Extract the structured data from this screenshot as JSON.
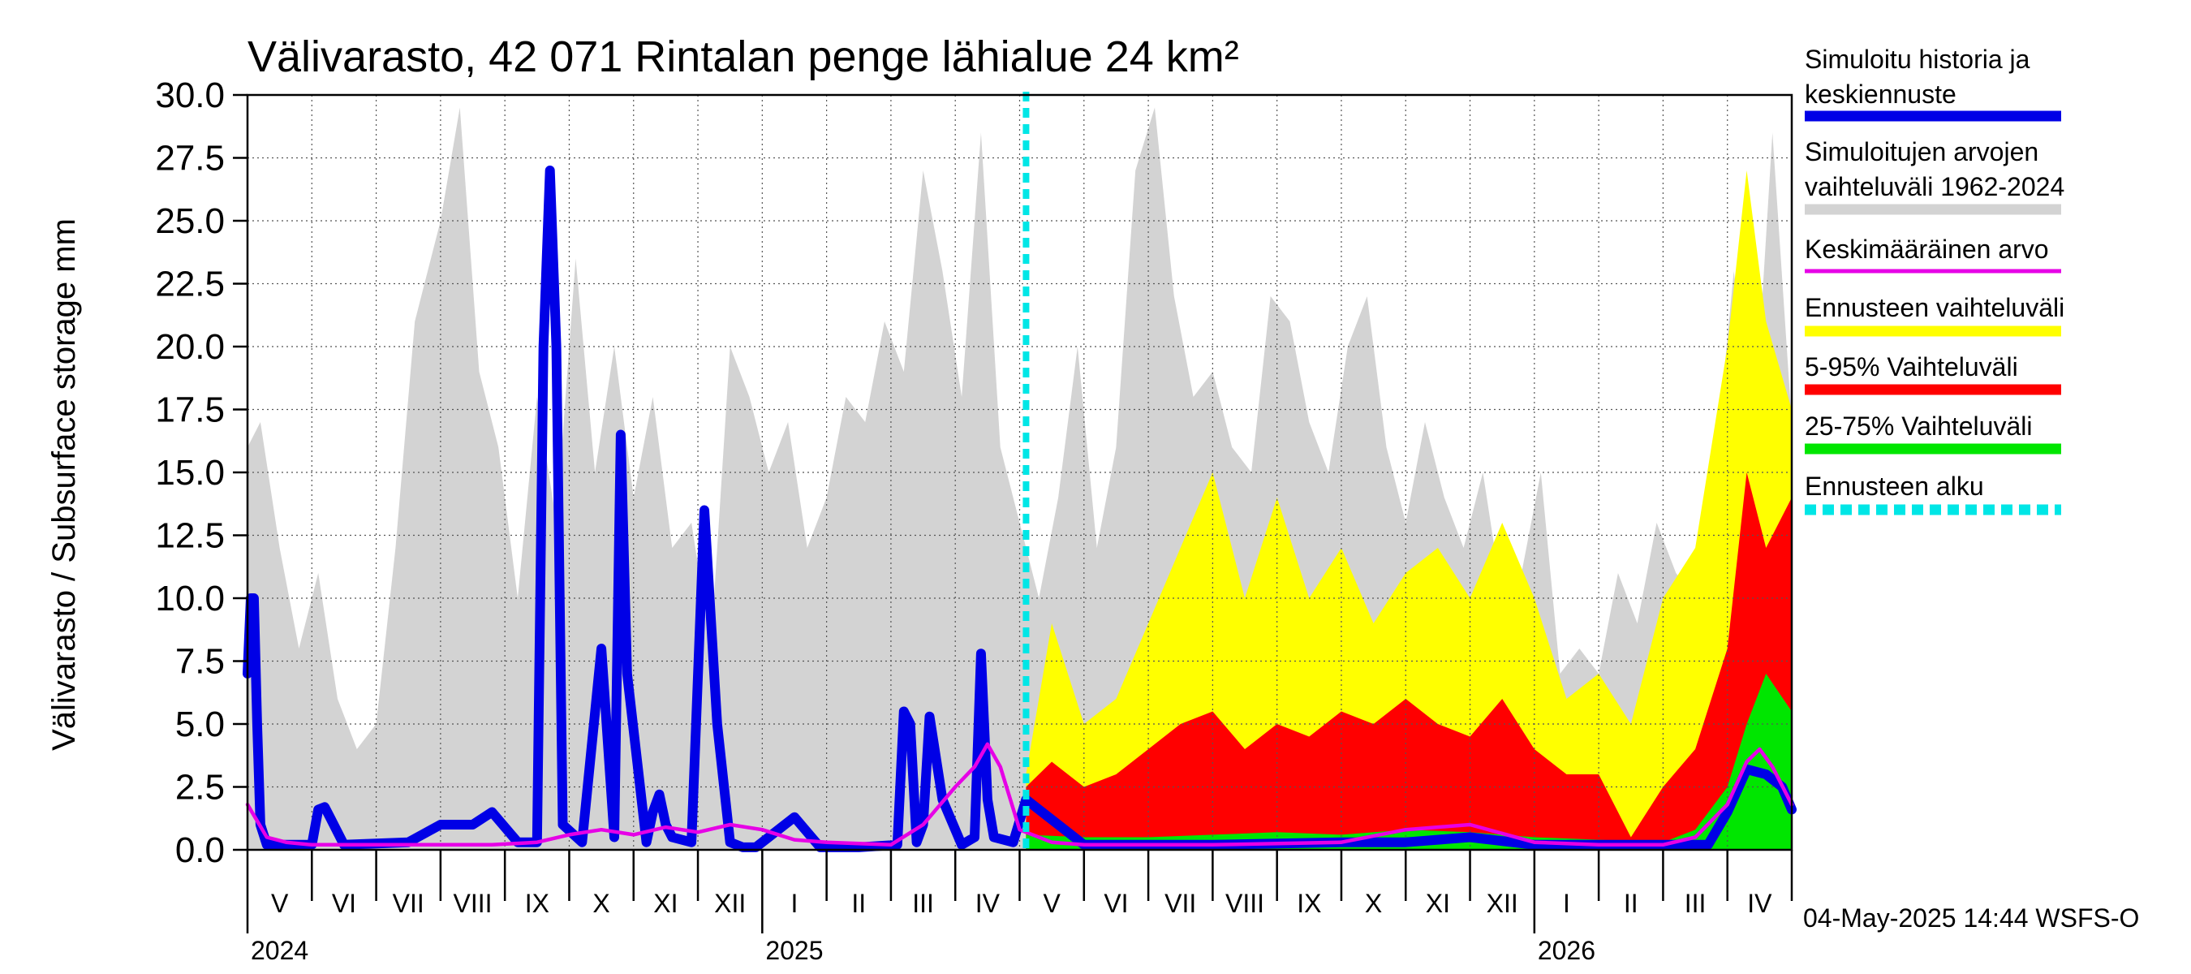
{
  "chart_data": {
    "type": "area",
    "title": "Välivarasto, 42 071 Rintalan penge lähialue 24 km²",
    "ylabel": "Välivarasto / Subsurface storage  mm",
    "xlabel": "",
    "ylim": [
      0,
      30
    ],
    "y_ticks": [
      "0.0",
      "2.5",
      "5.0",
      "7.5",
      "10.0",
      "12.5",
      "15.0",
      "17.5",
      "20.0",
      "22.5",
      "25.0",
      "27.5",
      "30.0"
    ],
    "months": [
      "V",
      "VI",
      "VII",
      "VIII",
      "IX",
      "X",
      "XI",
      "XII",
      "I",
      "II",
      "III",
      "IV",
      "V",
      "VI",
      "VII",
      "VIII",
      "IX",
      "X",
      "XI",
      "XII",
      "I",
      "II",
      "III",
      "IV"
    ],
    "years": [
      "2024",
      "2025",
      "2026"
    ],
    "forecast_start_month_index": 12.1,
    "legend": [
      {
        "label": "Simuloitu historia ja keskiennuste",
        "lines": [
          "Simuloitu historia ja",
          "keskiennuste"
        ],
        "color": "#0000e6",
        "style": "solid"
      },
      {
        "label": "Simuloitujen arvojen vaihteluväli 1962-2024",
        "lines": [
          "Simuloitujen arvojen",
          "vaihteluväli 1962-2024"
        ],
        "color": "#d3d3d3",
        "style": "solid"
      },
      {
        "label": "Keskimääräinen arvo",
        "lines": [
          "Keskimääräinen arvo"
        ],
        "color": "#e600e6",
        "style": "solid"
      },
      {
        "label": "Ennusteen vaihteluväli",
        "lines": [
          "Ennusteen vaihteluväli"
        ],
        "color": "#ffff00",
        "style": "solid"
      },
      {
        "label": "5-95% Vaihteluväli",
        "lines": [
          "5-95% Vaihteluväli"
        ],
        "color": "#ff0000",
        "style": "solid"
      },
      {
        "label": "25-75% Vaihteluväli",
        "lines": [
          "25-75% Vaihteluväli"
        ],
        "color": "#00e600",
        "style": "solid"
      },
      {
        "label": "Ennusteen alku",
        "lines": [
          "Ennusteen alku"
        ],
        "color": "#00e6e6",
        "style": "dashed"
      }
    ],
    "series": [
      {
        "name": "Simuloitu historia ja keskiennuste",
        "x": [
          0,
          0.05,
          0.1,
          0.15,
          0.2,
          0.3,
          1.0,
          1.1,
          1.2,
          1.3,
          1.5,
          2.5,
          3.0,
          3.2,
          3.5,
          3.8,
          4.2,
          4.5,
          4.6,
          4.7,
          4.8,
          4.9,
          5.2,
          5.5,
          5.7,
          5.8,
          5.9,
          6.2,
          6.3,
          6.4,
          6.5,
          6.6,
          6.9,
          7.1,
          7.3,
          7.5,
          7.6,
          7.7,
          7.9,
          8.5,
          8.9,
          9.5,
          10.1,
          10.2,
          10.3,
          10.4,
          10.5,
          10.6,
          10.8,
          11.1,
          11.3,
          11.4,
          11.5,
          11.6,
          11.9,
          12.1,
          13,
          15,
          17,
          18,
          19,
          20,
          21,
          22,
          22.7,
          23,
          23.3,
          23.6,
          23.85,
          24
        ],
        "values": [
          7.0,
          10.0,
          10.0,
          5.0,
          1.0,
          0.2,
          0.2,
          1.6,
          1.7,
          1.2,
          0.2,
          0.3,
          1.0,
          1.0,
          1.0,
          1.5,
          0.3,
          0.3,
          20,
          27,
          20,
          1.0,
          0.3,
          8.0,
          0.5,
          16.5,
          7.0,
          0.3,
          1.5,
          2.2,
          1.0,
          0.5,
          0.3,
          13.5,
          5.0,
          0.3,
          0.2,
          0.1,
          0.1,
          1.3,
          0.1,
          0.1,
          0.2,
          5.5,
          5.0,
          0.3,
          1.0,
          5.3,
          2.0,
          0.2,
          0.5,
          7.8,
          2.0,
          0.5,
          0.3,
          2.0,
          0.2,
          0.2,
          0.3,
          0.3,
          0.5,
          0.2,
          0.2,
          0.2,
          0.2,
          1.5,
          3.2,
          3.0,
          2.5,
          1.6
        ]
      },
      {
        "name": "Keskimääräinen arvo",
        "x": [
          0,
          0.3,
          0.6,
          1,
          2,
          3,
          3.8,
          4.5,
          5,
          5.5,
          6,
          6.5,
          7,
          7.5,
          8,
          8.5,
          9,
          10,
          10.5,
          11,
          11.3,
          11.5,
          11.7,
          12,
          12.5,
          13,
          15,
          17,
          18,
          19,
          20,
          21,
          22,
          22.5,
          23,
          23.3,
          23.5,
          23.7,
          24
        ],
        "values": [
          1.8,
          0.5,
          0.3,
          0.2,
          0.2,
          0.2,
          0.2,
          0.3,
          0.6,
          0.8,
          0.6,
          0.9,
          0.7,
          1.0,
          0.8,
          0.4,
          0.3,
          0.2,
          1.0,
          2.5,
          3.3,
          4.2,
          3.3,
          0.8,
          0.3,
          0.2,
          0.2,
          0.3,
          0.8,
          1.0,
          0.3,
          0.2,
          0.2,
          0.5,
          1.8,
          3.5,
          4.0,
          3.3,
          1.8
        ]
      }
    ],
    "ranges": [
      {
        "name": "Simuloitujen arvojen vaihteluväli 1962-2024",
        "x": [
          0,
          0.2,
          0.5,
          0.8,
          1.1,
          1.4,
          1.7,
          2.0,
          2.3,
          2.6,
          3.0,
          3.3,
          3.6,
          3.9,
          4.2,
          4.5,
          4.8,
          5.1,
          5.4,
          5.7,
          6.0,
          6.3,
          6.6,
          6.9,
          7.2,
          7.5,
          7.8,
          8.1,
          8.4,
          8.7,
          9.0,
          9.3,
          9.6,
          9.9,
          10.2,
          10.5,
          10.8,
          11.1,
          11.4,
          11.7,
          12.0,
          12.3,
          12.6,
          12.9,
          13.2,
          13.5,
          13.8,
          14.1,
          14.4,
          14.7,
          15.0,
          15.3,
          15.6,
          15.9,
          16.2,
          16.5,
          16.8,
          17.1,
          17.4,
          17.7,
          18.0,
          18.3,
          18.6,
          18.9,
          19.2,
          19.5,
          19.8,
          20.1,
          20.4,
          20.7,
          21.0,
          21.3,
          21.6,
          21.9,
          22.2,
          22.5,
          22.8,
          23.1,
          23.4,
          23.7,
          24.0
        ],
        "low": [
          0,
          0,
          0,
          0,
          0,
          0,
          0,
          0,
          0,
          0,
          0,
          0,
          0,
          0,
          0,
          0,
          0,
          0,
          0,
          0,
          0,
          0,
          0,
          0,
          0,
          0,
          0,
          0,
          0,
          0,
          0,
          0,
          0,
          0,
          0,
          0,
          0,
          0,
          0,
          0,
          0,
          0,
          0,
          0,
          0,
          0,
          0,
          0,
          0,
          0,
          0,
          0,
          0,
          0,
          0,
          0,
          0,
          0,
          0,
          0,
          0,
          0,
          0,
          0,
          0,
          0,
          0,
          0,
          0,
          0,
          0,
          0,
          0,
          0,
          0,
          0,
          0,
          0,
          0,
          0,
          0
        ],
        "high": [
          16,
          17,
          12,
          8,
          11,
          6,
          4,
          5,
          12,
          21,
          25,
          29.5,
          19,
          16,
          10,
          18,
          13,
          23.5,
          15,
          20,
          14,
          18,
          12,
          13,
          8,
          20,
          18,
          15,
          17,
          12,
          14,
          18,
          17,
          21,
          19,
          27,
          23,
          18,
          28.5,
          16,
          13,
          10,
          14,
          20,
          12,
          16,
          27,
          29.5,
          22,
          18,
          19,
          16,
          15,
          22,
          21,
          17,
          15,
          20,
          22,
          16,
          13,
          17,
          14,
          12,
          15,
          10,
          11,
          15,
          7,
          8,
          7,
          11,
          9,
          13,
          11,
          10,
          15,
          23,
          16,
          28.5,
          17
        ]
      },
      {
        "name": "Ennusteen vaihteluväli",
        "x": [
          12.1,
          12.5,
          13.0,
          13.5,
          14.0,
          14.5,
          15.0,
          15.5,
          16.0,
          16.5,
          17.0,
          17.5,
          18.0,
          18.5,
          19.0,
          19.5,
          20.0,
          20.5,
          21.0,
          21.5,
          22.0,
          22.5,
          23.0,
          23.3,
          23.6,
          24.0
        ],
        "low": [
          0,
          0,
          0,
          0,
          0,
          0,
          0,
          0,
          0,
          0,
          0,
          0,
          0,
          0,
          0,
          0,
          0,
          0,
          0,
          0,
          0,
          0,
          0,
          0,
          0,
          0
        ],
        "high": [
          3,
          9,
          5,
          6,
          9,
          12,
          15,
          10,
          14,
          10,
          12,
          9,
          11,
          12,
          10,
          13,
          10,
          6,
          7,
          5,
          10,
          12,
          20,
          27,
          21,
          17.5
        ]
      },
      {
        "name": "5-95% Vaihteluväli",
        "x": [
          12.1,
          12.5,
          13.0,
          13.5,
          14.0,
          14.5,
          15.0,
          15.5,
          16.0,
          16.5,
          17.0,
          17.5,
          18.0,
          18.5,
          19.0,
          19.5,
          20.0,
          20.5,
          21.0,
          21.5,
          22.0,
          22.5,
          23.0,
          23.3,
          23.6,
          24.0
        ],
        "low": [
          0,
          0,
          0,
          0,
          0,
          0,
          0,
          0,
          0,
          0,
          0,
          0,
          0,
          0,
          0,
          0,
          0,
          0,
          0,
          0,
          0,
          0,
          0,
          0,
          0,
          0
        ],
        "high": [
          2.5,
          3.5,
          2.5,
          3,
          4,
          5,
          5.5,
          4,
          5,
          4.5,
          5.5,
          5,
          6,
          5,
          4.5,
          6,
          4,
          3,
          3,
          0.5,
          2.5,
          4,
          8,
          15,
          12,
          14
        ]
      },
      {
        "name": "25-75% Vaihteluväli",
        "x": [
          12.1,
          13.0,
          14.0,
          15.0,
          16.0,
          17.0,
          18.0,
          19.0,
          20.0,
          21.0,
          22.0,
          22.5,
          23.0,
          23.3,
          23.6,
          24.0
        ],
        "low": [
          0,
          0,
          0,
          0,
          0,
          0,
          0,
          0,
          0,
          0,
          0,
          0,
          0,
          0,
          0,
          0
        ],
        "high": [
          0.6,
          0.5,
          0.5,
          0.6,
          0.7,
          0.6,
          0.8,
          0.7,
          0.5,
          0.4,
          0.3,
          0.8,
          2.5,
          5.0,
          7.0,
          5.5
        ]
      }
    ],
    "footer": "04-May-2025 14:44 WSFS-O"
  }
}
